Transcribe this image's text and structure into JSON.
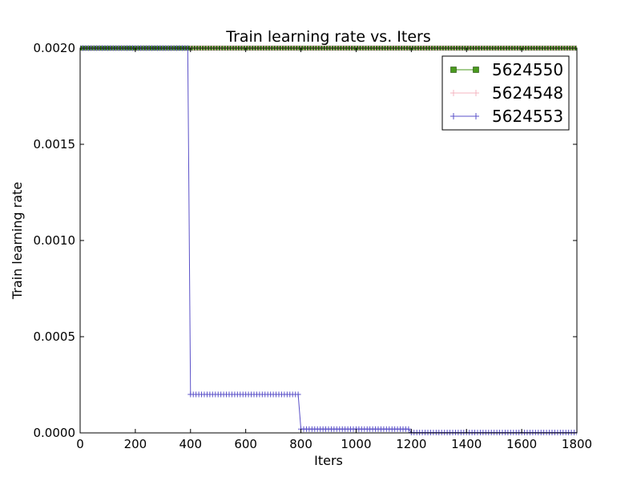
{
  "chart_data": {
    "type": "line",
    "title": "Train learning rate  vs. Iters",
    "xlabel": "Iters",
    "ylabel": "Train learning rate",
    "xlim": [
      0,
      1800
    ],
    "ylim": [
      0,
      0.002
    ],
    "x_ticks": [
      0,
      200,
      400,
      600,
      800,
      1000,
      1200,
      1400,
      1600,
      1800
    ],
    "x_tick_labels": [
      "0",
      "200",
      "400",
      "600",
      "800",
      "1000",
      "1200",
      "1400",
      "1600",
      "1800"
    ],
    "y_ticks": [
      0,
      0.0005,
      0.001,
      0.0015,
      0.002
    ],
    "y_tick_labels": [
      "0.0000",
      "0.0005",
      "0.0010",
      "0.0015",
      "0.0020"
    ],
    "grid": false,
    "legend_position": "top-right",
    "series": [
      {
        "name": "5624550",
        "color": "#4a9a1e",
        "marker": "square",
        "points": [
          [
            0,
            0.002
          ],
          [
            1800,
            0.002
          ]
        ],
        "marker_step": 10
      },
      {
        "name": "5624548",
        "color": "#f4b6c2",
        "marker": "plus",
        "points": [
          [
            0,
            0.002
          ],
          [
            1800,
            0.002
          ]
        ],
        "marker_step": 10
      },
      {
        "name": "5624553",
        "color": "#5a50c8",
        "marker": "plus",
        "points": [
          [
            0,
            0.002
          ],
          [
            390,
            0.002
          ],
          [
            400,
            0.0002
          ],
          [
            790,
            0.0002
          ],
          [
            800,
            2e-05
          ],
          [
            1190,
            2e-05
          ],
          [
            1200,
            2e-06
          ],
          [
            1800,
            2e-06
          ]
        ],
        "marker_step": 10
      }
    ]
  }
}
